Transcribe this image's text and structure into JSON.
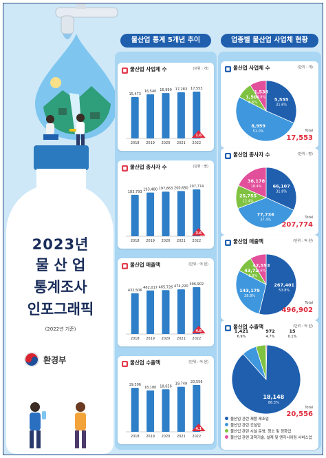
{
  "poster": {
    "title_lines": [
      "2023년",
      "물 산 업",
      "통계조사",
      "인포그래픽"
    ],
    "subtitle": "(2022년 기준)",
    "ministry": "환경부"
  },
  "left_header": "물산업 통계 5개년 추이",
  "right_header": "업종별 물산업 사업체 현황",
  "colors": {
    "navy": "#1f5fae",
    "bar": "#2f7fc8",
    "highlight": "#e02b3c",
    "pie_blue_dark": "#1f5fae",
    "pie_blue": "#3f97dd",
    "pie_green": "#7fc241",
    "pie_pink": "#e24f9b"
  },
  "chart_data": [
    {
      "type": "bar",
      "title": "물산업 사업체 수",
      "unit": "(단위 : 개)",
      "categories": [
        "2018",
        "2019",
        "2020",
        "2021",
        "2022"
      ],
      "values": [
        15473,
        16540,
        16990,
        17283,
        17553
      ],
      "value_labels": [
        "15,473",
        "16,540",
        "16,990",
        "17,283",
        "17,553"
      ],
      "growth": "1.6"
    },
    {
      "type": "bar",
      "title": "물산업 종사자 수",
      "unit": "(단위 : 명)",
      "categories": [
        "2018",
        "2019",
        "2020",
        "2021",
        "2022"
      ],
      "values": [
        183793,
        193480,
        197863,
        200650,
        207774
      ],
      "value_labels": [
        "183,793",
        "193,480",
        "197,863",
        "200,650",
        "207,774"
      ],
      "growth": "3.6"
    },
    {
      "type": "bar",
      "title": "물산업 매출액",
      "unit": "(단위 : 억 원)",
      "categories": [
        "2018",
        "2019",
        "2020",
        "2021",
        "2022"
      ],
      "values": [
        432506,
        462017,
        465726,
        474220,
        496902
      ],
      "value_labels": [
        "432,506",
        "462,017",
        "465,726",
        "474,220",
        "496,902"
      ],
      "growth": "4.8"
    },
    {
      "type": "bar",
      "title": "물산업 수출액",
      "unit": "(단위 : 억 원)",
      "categories": [
        "2018",
        "2019",
        "2020",
        "2021",
        "2022"
      ],
      "values": [
        19306,
        18180,
        18656,
        19749,
        20556
      ],
      "value_labels": [
        "19,306",
        "18,180",
        "18,656",
        "19,749",
        "20,556"
      ],
      "growth": "4.1"
    },
    {
      "type": "pie",
      "title": "물산업 사업체 수",
      "unit": "(단위 : 개)",
      "total_label": "Total",
      "total": "17,553",
      "slices": [
        {
          "value": "5,555",
          "pct": "31.6%",
          "fraction": 0.316
        },
        {
          "value": "8,959",
          "pct": "51.0%",
          "fraction": 0.51
        },
        {
          "value": "1,501",
          "pct": "8.6%",
          "fraction": 0.086
        },
        {
          "value": "1,538",
          "pct": "8.8%",
          "fraction": 0.088
        }
      ]
    },
    {
      "type": "pie",
      "title": "물산업 종사자 수",
      "unit": "(단위 : 명)",
      "total_label": "Total",
      "total": "207,774",
      "slices": [
        {
          "value": "66,107",
          "pct": "31.8%",
          "fraction": 0.318
        },
        {
          "value": "77,734",
          "pct": "37.4%",
          "fraction": 0.374
        },
        {
          "value": "25,755",
          "pct": "12.4%",
          "fraction": 0.124
        },
        {
          "value": "38,178",
          "pct": "18.4%",
          "fraction": 0.184
        }
      ]
    },
    {
      "type": "pie",
      "title": "물산업 매출액",
      "unit": "(단위 : 억 원)",
      "total_label": "Total",
      "total": "496,902",
      "slices": [
        {
          "value": "267,401",
          "pct": "53.8%",
          "fraction": 0.538
        },
        {
          "value": "143,179",
          "pct": "28.8%",
          "fraction": 0.288
        },
        {
          "value": "43,729",
          "pct": "8.8%",
          "fraction": 0.088
        },
        {
          "value": "42,593",
          "pct": "8.6%",
          "fraction": 0.086
        }
      ]
    },
    {
      "type": "pie",
      "title": "물산업 수출액",
      "unit": "(단위 : 억 원)",
      "total_label": "Total",
      "total": "20,556",
      "slices": [
        {
          "value": "18,148",
          "pct": "88.3%",
          "fraction": 0.883
        },
        {
          "value": "1,421",
          "pct": "6.9%",
          "fraction": 0.069
        },
        {
          "value": "972",
          "pct": "4.7%",
          "fraction": 0.047
        },
        {
          "value": "15",
          "pct": "0.1%",
          "fraction": 0.001
        }
      ]
    }
  ],
  "legend": [
    "물산업 관련 제품 제조업",
    "물산업 관련 건설업",
    "물산업 관련 시설 운영, 청소 및 정화업",
    "물산업 관련 과학기술, 설계 및 엔지니어링 서비스업"
  ]
}
